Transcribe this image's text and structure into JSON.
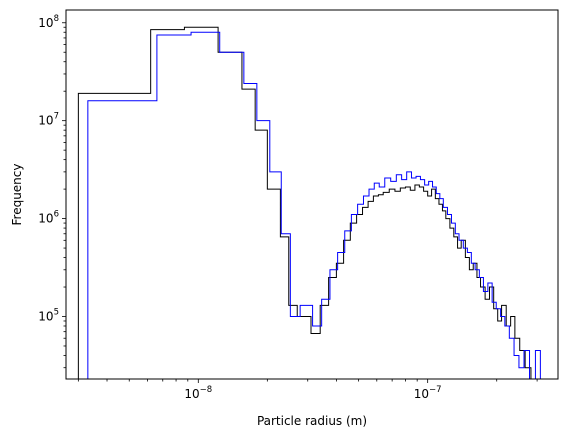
{
  "chart_data": {
    "type": "line",
    "subtype": "step-histogram",
    "title": "",
    "xlabel": "Particle radius (m)",
    "ylabel": "Frequency",
    "xscale": "log",
    "yscale": "log",
    "xlim": [
      2.65e-09,
      3.7e-07
    ],
    "ylim": [
      23000.0,
      135000000.0
    ],
    "grid": false,
    "legend": "none",
    "x_ticks": [
      {
        "value": 1e-08,
        "base": "10",
        "exp": "−8"
      },
      {
        "value": 1e-07,
        "base": "10",
        "exp": "−7"
      }
    ],
    "y_ticks": [
      {
        "value": 100000.0,
        "base": "10",
        "exp": "5"
      },
      {
        "value": 1000000.0,
        "base": "10",
        "exp": "6"
      },
      {
        "value": 10000000.0,
        "base": "10",
        "exp": "7"
      },
      {
        "value": 100000000.0,
        "base": "10",
        "exp": "8"
      }
    ],
    "series": [
      {
        "color": "#000000",
        "edges": [
          3e-09,
          6.2e-09,
          8.7e-09,
          1.22e-08,
          1.55e-08,
          1.77e-08,
          2e-08,
          2.28e-08,
          2.48e-08,
          2.7e-08,
          3.1e-08,
          3.4e-08,
          3.7e-08,
          4e-08,
          4.3e-08,
          4.6e-08,
          4.9e-08,
          5.2e-08,
          5.5e-08,
          5.8e-08,
          6.1e-08,
          6.4e-08,
          6.8e-08,
          7.2e-08,
          7.6e-08,
          8e-08,
          8.4e-08,
          8.8e-08,
          9.2e-08,
          9.6e-08,
          1e-07,
          1.04e-07,
          1.08e-07,
          1.12e-07,
          1.16e-07,
          1.2e-07,
          1.25e-07,
          1.3e-07,
          1.35e-07,
          1.4e-07,
          1.46e-07,
          1.52e-07,
          1.58e-07,
          1.64e-07,
          1.7e-07,
          1.78e-07,
          1.86e-07,
          1.94e-07,
          2.02e-07,
          2.1e-07,
          2.2e-07,
          2.3e-07,
          2.4e-07,
          2.52e-07,
          2.66e-07,
          2.82e-07,
          3e-07
        ],
        "values": [
          19000000.0,
          85000000.0,
          90000000.0,
          50000000.0,
          21000000.0,
          8000000.0,
          2000000.0,
          650000.0,
          130000.0,
          100000.0,
          67000.0,
          130000.0,
          250000.0,
          350000.0,
          600000.0,
          900000.0,
          1100000.0,
          1300000.0,
          1500000.0,
          1700000.0,
          1750000.0,
          1850000.0,
          2000000.0,
          1900000.0,
          2050000.0,
          2100000.0,
          1950000.0,
          2200000.0,
          2100000.0,
          1900000.0,
          1700000.0,
          2000000.0,
          1600000.0,
          1400000.0,
          1200000.0,
          1000000.0,
          800000.0,
          650000.0,
          500000.0,
          600000.0,
          400000.0,
          300000.0,
          350000.0,
          250000.0,
          200000.0,
          150000.0,
          200000.0,
          120000.0,
          90000.0,
          130000.0,
          80000.0,
          100000.0,
          60000.0,
          45000.0,
          30000.0,
          10000.0
        ]
      },
      {
        "color": "#0000ff",
        "edges": [
          3.3e-09,
          6.6e-09,
          9.3e-09,
          1.24e-08,
          1.58e-08,
          1.8e-08,
          2.05e-08,
          2.3e-08,
          2.52e-08,
          2.78e-08,
          3.15e-08,
          3.45e-08,
          3.75e-08,
          4.05e-08,
          4.35e-08,
          4.65e-08,
          4.95e-08,
          5.25e-08,
          5.55e-08,
          5.85e-08,
          6.15e-08,
          6.5e-08,
          6.9e-08,
          7.3e-08,
          7.7e-08,
          8.1e-08,
          8.5e-08,
          8.9e-08,
          9.3e-08,
          9.7e-08,
          1.01e-07,
          1.05e-07,
          1.09e-07,
          1.13e-07,
          1.17e-07,
          1.22e-07,
          1.27e-07,
          1.32e-07,
          1.37e-07,
          1.43e-07,
          1.49e-07,
          1.55e-07,
          1.61e-07,
          1.68e-07,
          1.75e-07,
          1.83e-07,
          1.91e-07,
          1.99e-07,
          2.08e-07,
          2.17e-07,
          2.27e-07,
          2.38e-07,
          2.5e-07,
          2.63e-07,
          2.78e-07,
          2.95e-07,
          3.1e-07
        ],
        "values": [
          16000000.0,
          75000000.0,
          80000000.0,
          50000000.0,
          24000000.0,
          10000000.0,
          3000000.0,
          700000.0,
          100000.0,
          130000.0,
          80000.0,
          150000.0,
          300000.0,
          450000.0,
          750000.0,
          1100000.0,
          1400000.0,
          1700000.0,
          2000000.0,
          2300000.0,
          2100000.0,
          2600000.0,
          2400000.0,
          2800000.0,
          2500000.0,
          3000000.0,
          2600000.0,
          2700000.0,
          2500000.0,
          2200000.0,
          2400000.0,
          2100000.0,
          1800000.0,
          1600000.0,
          1300000.0,
          1100000.0,
          900000.0,
          700000.0,
          600000.0,
          500000.0,
          450000.0,
          350000.0,
          300000.0,
          250000.0,
          180000.0,
          220000.0,
          140000.0,
          120000.0,
          100000.0,
          80000.0,
          60000.0,
          40000.0,
          30000.0,
          45000.0,
          10000.0,
          45000.0
        ]
      }
    ]
  }
}
